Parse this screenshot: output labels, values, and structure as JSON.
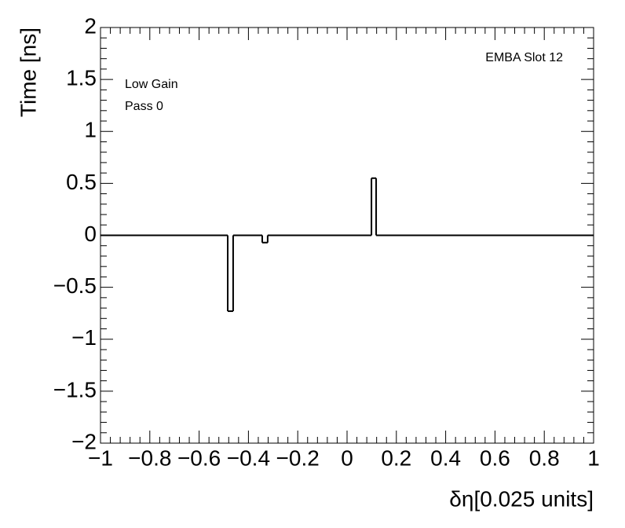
{
  "chart_data": {
    "type": "histogram",
    "xlabel": "δη[0.025 units]",
    "ylabel": "Time [ns]",
    "annotations": [
      "EMBA Slot 12",
      "Low Gain",
      "Pass 0"
    ],
    "bins": [
      -1,
      -0.484,
      -0.462,
      -0.344,
      -0.322,
      0.099,
      0.118,
      1
    ],
    "values": [
      0,
      -0.73,
      0,
      -0.07,
      0,
      0.55,
      0
    ],
    "color": "#000000",
    "xlim": [
      -1,
      1
    ],
    "xticks": [
      {
        "value": -1,
        "label": "−1"
      },
      {
        "value": -0.8,
        "label": "−0.8"
      },
      {
        "value": -0.6,
        "label": "−0.6"
      },
      {
        "value": -0.4,
        "label": "−0.4"
      },
      {
        "value": -0.2,
        "label": "−0.2"
      },
      0,
      0.2,
      0.4,
      0.6,
      0.8,
      1
    ],
    "ylim": [
      -2,
      2
    ],
    "yticks": [
      {
        "value": -2,
        "label": "−2"
      },
      {
        "value": -1.5,
        "label": "−1.5"
      },
      {
        "value": -1,
        "label": "−1"
      },
      {
        "value": -0.5,
        "label": "−0.5"
      },
      0,
      0.5,
      1,
      1.5,
      2
    ]
  }
}
